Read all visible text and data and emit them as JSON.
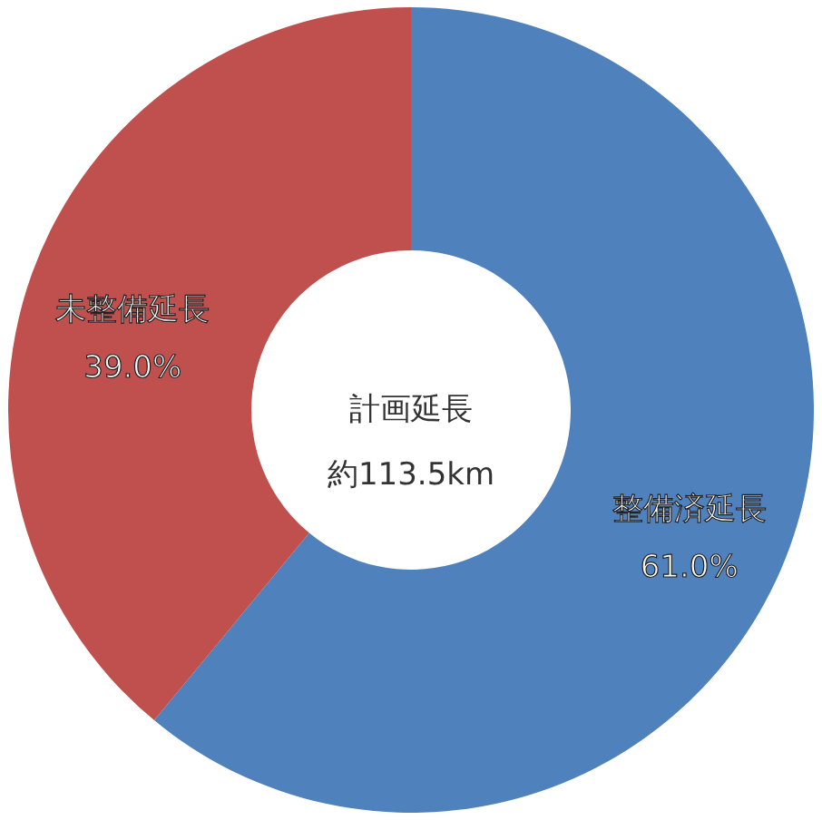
{
  "chart_data": {
    "type": "donut",
    "categories": [
      "整備済延長",
      "未整備延長"
    ],
    "values": [
      61.0,
      39.0
    ],
    "value_labels": [
      "61.0%",
      "39.0%"
    ],
    "colors": [
      "#4f81bd",
      "#c0504d"
    ],
    "annotations": [
      "計画延長",
      "約113.5km"
    ],
    "legend": false
  }
}
